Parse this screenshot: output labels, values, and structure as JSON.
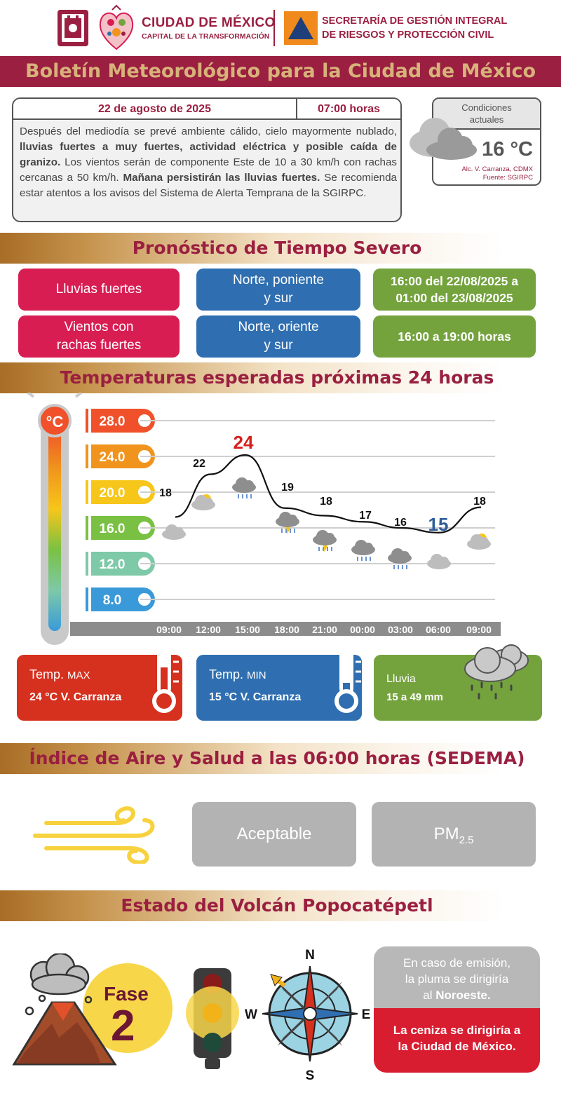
{
  "header": {
    "org_name": "CIUDAD DE MÉXICO",
    "org_slogan": "CAPITAL DE LA TRANSFORMACIÓN",
    "secretaria_line1": "SECRETARÍA DE GESTIÓN INTEGRAL",
    "secretaria_line2": "DE RIESGOS Y PROTECCIÓN CIVIL"
  },
  "title": "Boletín Meteorológico para la Ciudad de México",
  "bulletin": {
    "date": "22 de agosto de 2025",
    "hour": "07:00 horas",
    "text_1": "Después del mediodía se prevé ambiente cálido, cielo mayormente nublado, ",
    "text_bold_1": "lluvias fuertes a muy fuertes, actividad eléctrica y posible caída de granizo.",
    "text_2": " Los vientos serán de componente Este de 10 a 30 km/h con rachas cercanas a 50 km/h. ",
    "text_bold_2": "Mañana persistirán las lluvias fuertes.",
    "text_3": " Se recomienda estar atentos a los avisos del Sistema de Alerta Temprana de la SGIRPC."
  },
  "current": {
    "label_line1": "Condiciones",
    "label_line2": "actuales",
    "temp": "16 °C",
    "station": "Alc. V. Carranza, CDMX",
    "source": "Fuente: SGIRPC",
    "icon": "cloud-icon"
  },
  "severe": {
    "heading": "Pronóstico de Tiempo Severo",
    "rows": [
      {
        "phenomenon": "Lluvias fuertes",
        "zone_l1": "Norte, poniente",
        "zone_l2": "y sur",
        "period_l1": "16:00 del 22/08/2025 a",
        "period_l2": "01:00 del 23/08/2025"
      },
      {
        "phenomenon_l1": "Vientos con",
        "phenomenon_l2": "rachas fuertes",
        "zone_l1": "Norte, oriente",
        "zone_l2": "y sur",
        "period": "16:00 a 19:00 horas"
      }
    ]
  },
  "temps": {
    "heading": "Temperaturas esperadas próximas 24 horas",
    "thermo_unit": "°C",
    "scale": [
      "28.0",
      "24.0",
      "20.0",
      "16.0",
      "12.0",
      "8.0"
    ],
    "scale_colors": [
      "#f0512a",
      "#f0941d",
      "#f7c61a",
      "#7ac143",
      "#7dc9a8",
      "#3a9ad9"
    ],
    "hours": [
      "09:00",
      "12:00",
      "15:00",
      "18:00",
      "21:00",
      "00:00",
      "03:00",
      "06:00",
      "09:00"
    ],
    "values": [
      "18",
      "22",
      "24",
      "19",
      "18",
      "17",
      "16",
      "15",
      "18"
    ],
    "max_color": "#d6201f",
    "min_color": "#2e5e9a"
  },
  "chart_data": {
    "type": "line",
    "title": "Temperaturas esperadas próximas 24 horas",
    "xlabel": "",
    "ylabel": "°C",
    "x": [
      "09:00",
      "12:00",
      "15:00",
      "18:00",
      "21:00",
      "00:00",
      "03:00",
      "06:00",
      "09:00"
    ],
    "series": [
      {
        "values": [
          18,
          22,
          24,
          19,
          18,
          17,
          16,
          15,
          18
        ]
      }
    ],
    "ylim": [
      8,
      28
    ],
    "yticks": [
      8,
      12,
      16,
      20,
      24,
      28
    ]
  },
  "cards": {
    "max_label": "Temp.",
    "max_suffix": "MAX",
    "max_value": "24  °C  V. Carranza",
    "min_label": "Temp.",
    "min_suffix": "MIN",
    "min_value": "15 °C  V. Carranza",
    "rain_label": "Lluvia",
    "rain_value": "15 a 49 mm"
  },
  "air": {
    "heading": "Índice de Aire y Salud a las 06:00 horas (SEDEMA)",
    "quality": "Aceptable",
    "pollutant": "PM",
    "pollutant_sub": "2.5"
  },
  "volcano": {
    "heading": "Estado del Volcán Popocatépetl",
    "phase_label": "Fase",
    "phase_number": "2",
    "compass": {
      "n": "N",
      "s": "S",
      "e": "E",
      "w": "W"
    },
    "plume_l1": "En caso de emisión,",
    "plume_l2": "la pluma se dirigiría",
    "plume_l3": "al ",
    "plume_dir": "Noroeste.",
    "ash_l1": "La ceniza se dirigiría a",
    "ash_l2": "la Ciudad de México."
  }
}
